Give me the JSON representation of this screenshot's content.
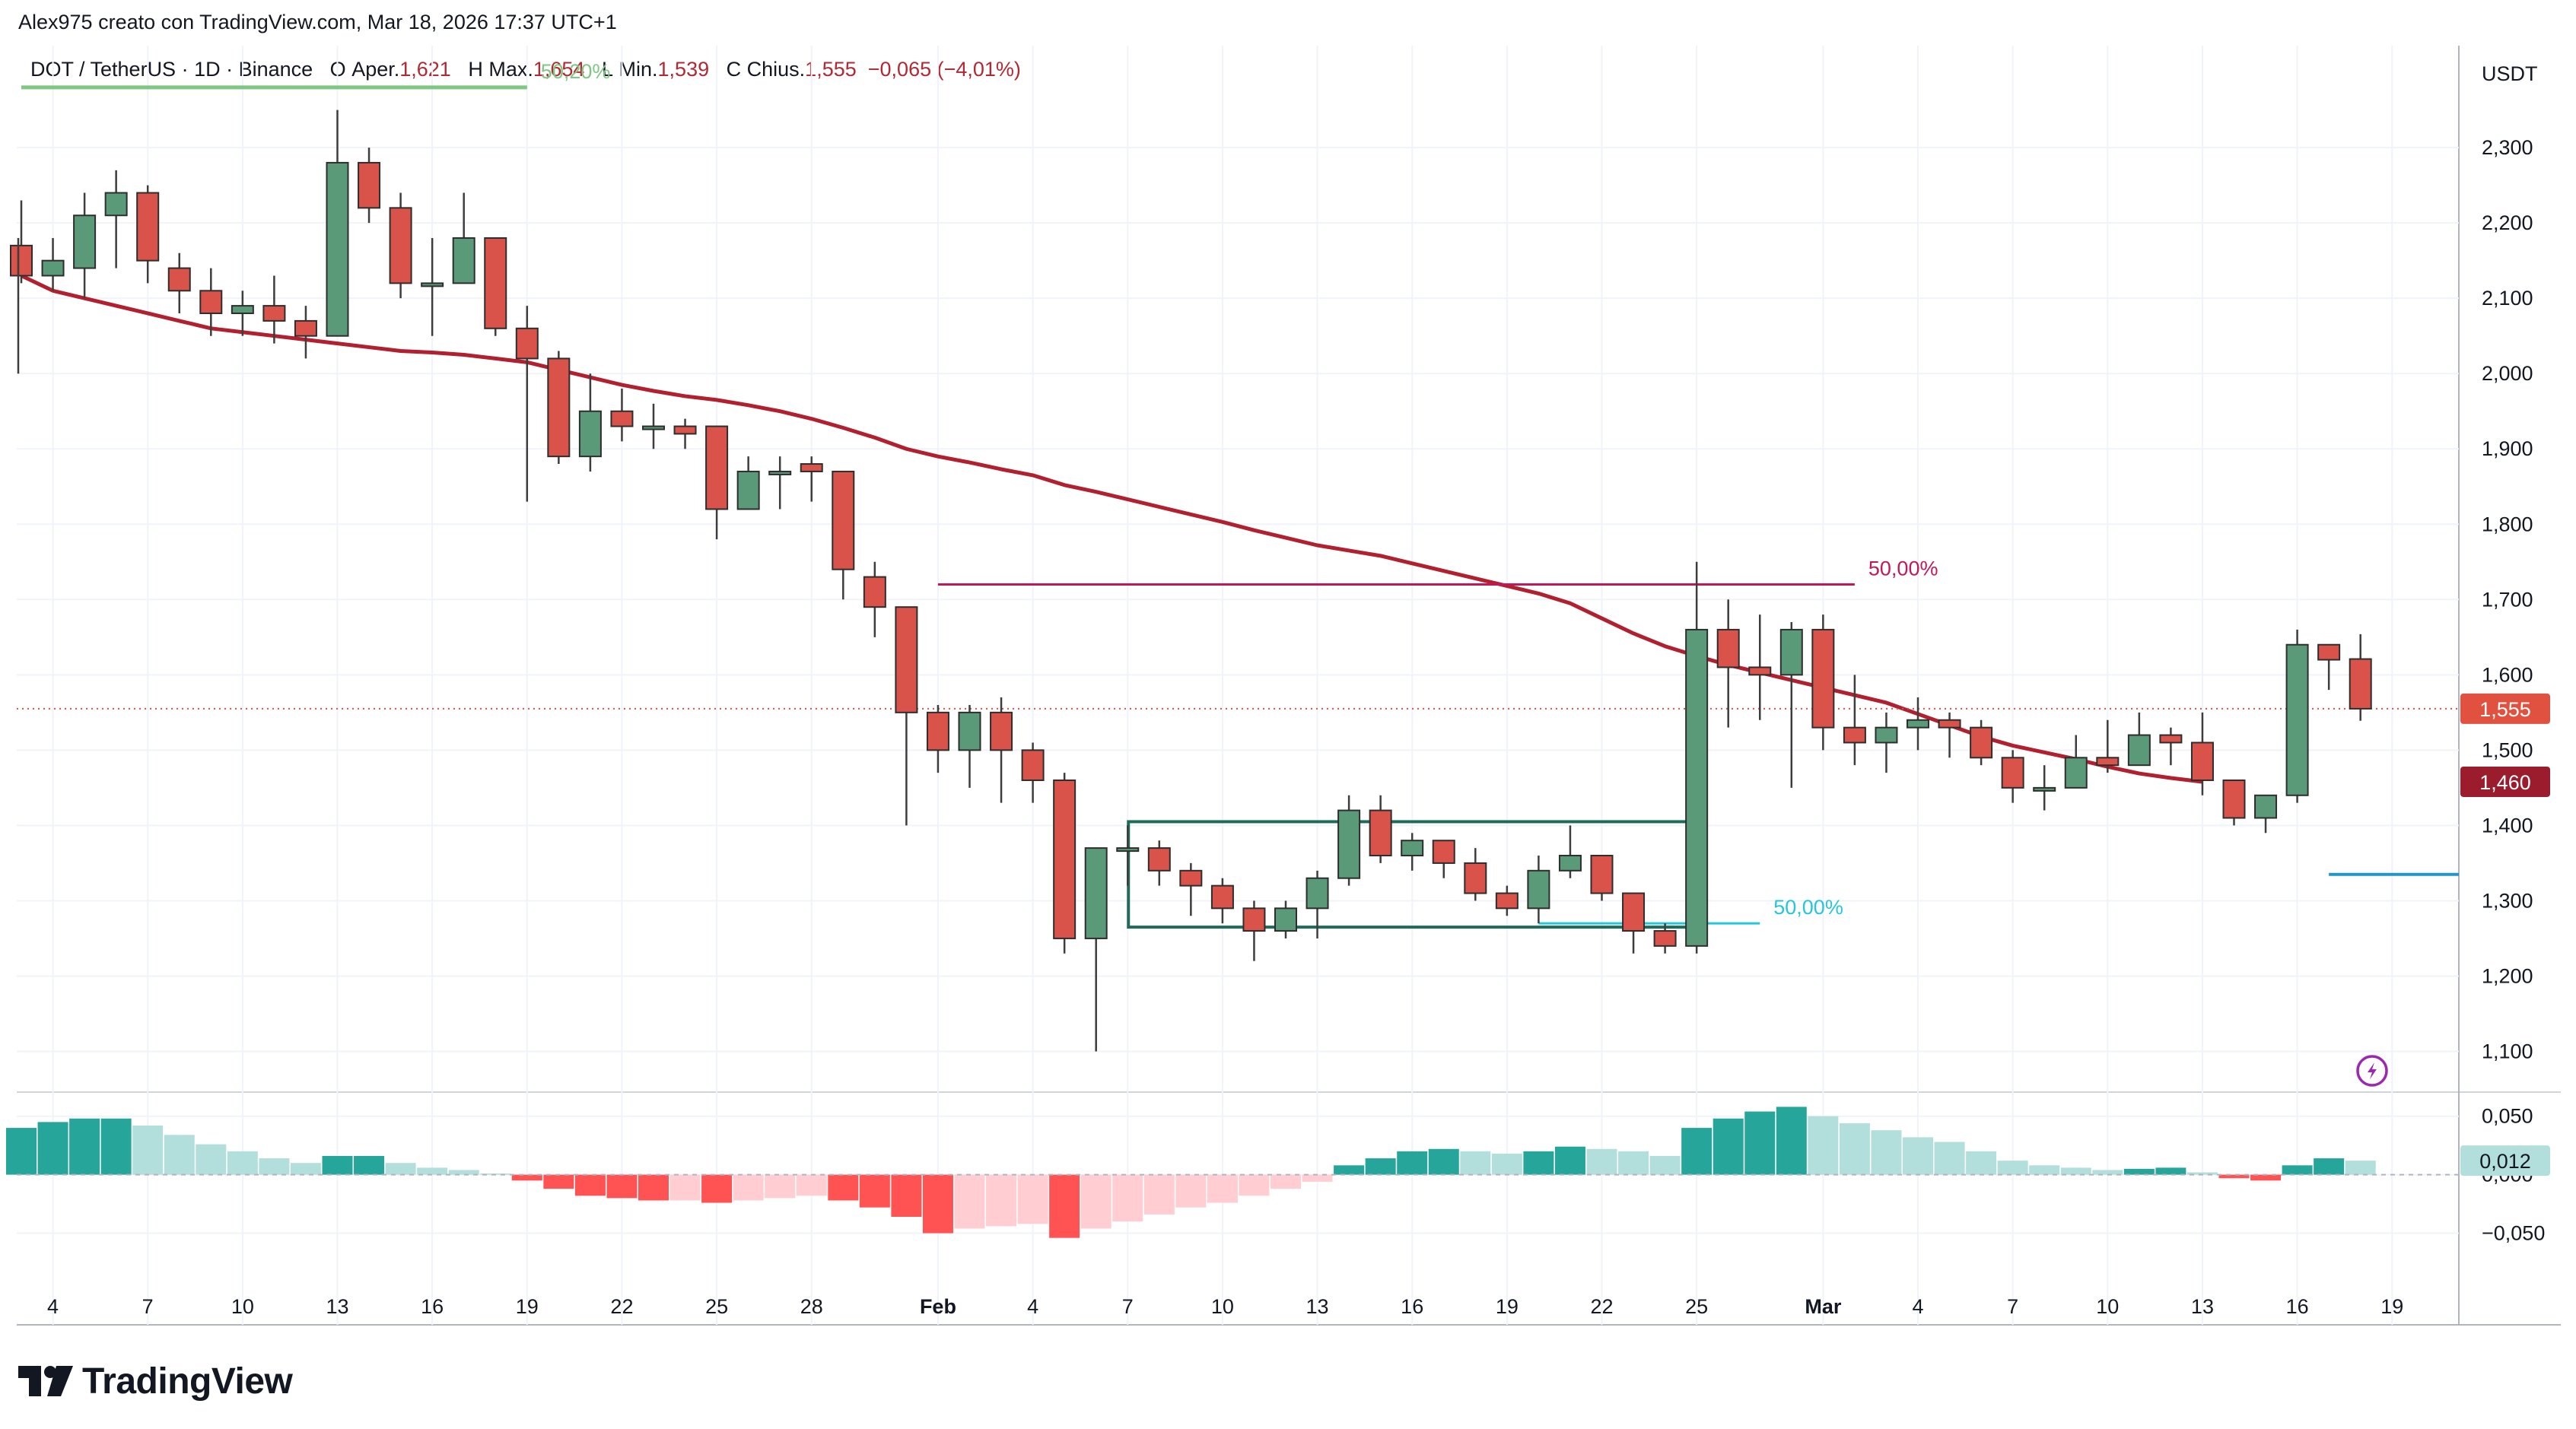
{
  "header": {
    "credit": "Alex975 creato con TradingView.com, Mar 18, 2026 17:37 UTC+1",
    "symbol_line": "DOT / TetherUS · 1D · Binance",
    "open_label": "O",
    "open_name": "Aper.",
    "open_value": "1,621",
    "high_label": "H",
    "high_name": "Max.",
    "high_value": "1,654",
    "low_label": "L",
    "low_name": "Min.",
    "low_value": "1,539",
    "close_label": "C",
    "close_name": "Chius.",
    "close_value": "1,555",
    "change_value": "−0,065 (−4,01%)"
  },
  "currency_label": "USDT",
  "logo_text": "TradingView",
  "colors": {
    "up": "#5b9a78",
    "down": "#d9534a",
    "ma": "#b2202f",
    "fib_top": "#c2185b",
    "fib_box": "#1e6b5a",
    "fib_mid": "#26c6da",
    "price_tag": "#e0523f",
    "ma_tag": "#9b1c2c",
    "hist_up_strong": "#26a69a",
    "hist_up_weak": "#b2dfdb",
    "hist_down_strong": "#ff5252",
    "hist_down_weak": "#ffcdd2",
    "blue_line": "#2196c9",
    "green_line": "#81c784"
  },
  "chart_data": {
    "type": "candlestick",
    "price_axis": {
      "ylim": [
        1.05,
        2.39
      ],
      "ticks": [
        "2,300",
        "2,200",
        "2,100",
        "2,000",
        "1,900",
        "1,800",
        "1,700",
        "1,600",
        "1,500",
        "1,400",
        "1,300",
        "1,200",
        "1,100"
      ],
      "tick_values": [
        2.3,
        2.2,
        2.1,
        2.0,
        1.9,
        1.8,
        1.7,
        1.6,
        1.5,
        1.4,
        1.3,
        1.2,
        1.1
      ]
    },
    "osc_axis": {
      "ylim": [
        -0.088,
        0.068
      ],
      "ticks": [
        "0,050",
        "0,000",
        "−0,050"
      ],
      "tick_values": [
        0.05,
        0.0,
        -0.05
      ]
    },
    "x_ticks": [
      {
        "i": 1,
        "label": "4"
      },
      {
        "i": 4,
        "label": "7"
      },
      {
        "i": 7,
        "label": "10"
      },
      {
        "i": 10,
        "label": "13"
      },
      {
        "i": 13,
        "label": "16"
      },
      {
        "i": 16,
        "label": "19"
      },
      {
        "i": 19,
        "label": "22"
      },
      {
        "i": 22,
        "label": "25"
      },
      {
        "i": 25,
        "label": "28"
      },
      {
        "i": 29,
        "label": "Feb"
      },
      {
        "i": 32,
        "label": "4"
      },
      {
        "i": 35,
        "label": "7"
      },
      {
        "i": 38,
        "label": "10"
      },
      {
        "i": 41,
        "label": "13"
      },
      {
        "i": 44,
        "label": "16"
      },
      {
        "i": 47,
        "label": "19"
      },
      {
        "i": 50,
        "label": "22"
      },
      {
        "i": 53,
        "label": "25"
      },
      {
        "i": 57,
        "label": "Mar"
      },
      {
        "i": 60,
        "label": "4"
      },
      {
        "i": 63,
        "label": "7"
      },
      {
        "i": 66,
        "label": "10"
      },
      {
        "i": 69,
        "label": "13"
      },
      {
        "i": 72,
        "label": "16"
      },
      {
        "i": 75,
        "label": "19"
      }
    ],
    "candles": [
      {
        "d": "Jan 3",
        "o": 2.17,
        "h": 2.23,
        "l": 2.12,
        "c": 2.13
      },
      {
        "d": "Jan 4",
        "o": 2.13,
        "h": 2.18,
        "l": 2.11,
        "c": 2.15
      },
      {
        "d": "Jan 5",
        "o": 2.14,
        "h": 2.24,
        "l": 2.1,
        "c": 2.21
      },
      {
        "d": "Jan 6",
        "o": 2.21,
        "h": 2.27,
        "l": 2.14,
        "c": 2.24
      },
      {
        "d": "Jan 7",
        "o": 2.24,
        "h": 2.25,
        "l": 2.12,
        "c": 2.15
      },
      {
        "d": "Jan 8",
        "o": 2.14,
        "h": 2.16,
        "l": 2.08,
        "c": 2.11
      },
      {
        "d": "Jan 9",
        "o": 2.11,
        "h": 2.14,
        "l": 2.05,
        "c": 2.08
      },
      {
        "d": "Jan 10",
        "o": 2.08,
        "h": 2.11,
        "l": 2.05,
        "c": 2.09
      },
      {
        "d": "Jan 11",
        "o": 2.09,
        "h": 2.13,
        "l": 2.04,
        "c": 2.07
      },
      {
        "d": "Jan 12",
        "o": 2.07,
        "h": 2.09,
        "l": 2.02,
        "c": 2.05
      },
      {
        "d": "Jan 13",
        "o": 2.05,
        "h": 2.35,
        "l": 2.05,
        "c": 2.28
      },
      {
        "d": "Jan 14",
        "o": 2.28,
        "h": 2.3,
        "l": 2.2,
        "c": 2.22
      },
      {
        "d": "Jan 15",
        "o": 2.22,
        "h": 2.24,
        "l": 2.1,
        "c": 2.12
      },
      {
        "d": "Jan 16",
        "o": 2.12,
        "h": 2.18,
        "l": 2.05,
        "c": 2.12
      },
      {
        "d": "Jan 17",
        "o": 2.12,
        "h": 2.24,
        "l": 2.12,
        "c": 2.18
      },
      {
        "d": "Jan 18",
        "o": 2.18,
        "h": 2.18,
        "l": 2.05,
        "c": 2.06
      },
      {
        "d": "Jan 19",
        "o": 2.06,
        "h": 2.09,
        "l": 1.83,
        "c": 2.02
      },
      {
        "d": "Jan 20",
        "o": 2.02,
        "h": 2.03,
        "l": 1.88,
        "c": 1.89
      },
      {
        "d": "Jan 21",
        "o": 1.89,
        "h": 2.0,
        "l": 1.87,
        "c": 1.95
      },
      {
        "d": "Jan 22",
        "o": 1.95,
        "h": 1.98,
        "l": 1.91,
        "c": 1.93
      },
      {
        "d": "Jan 23",
        "o": 1.93,
        "h": 1.96,
        "l": 1.9,
        "c": 1.93
      },
      {
        "d": "Jan 24",
        "o": 1.93,
        "h": 1.94,
        "l": 1.9,
        "c": 1.92
      },
      {
        "d": "Jan 25",
        "o": 1.93,
        "h": 1.93,
        "l": 1.78,
        "c": 1.82
      },
      {
        "d": "Jan 26",
        "o": 1.82,
        "h": 1.89,
        "l": 1.82,
        "c": 1.87
      },
      {
        "d": "Jan 27",
        "o": 1.87,
        "h": 1.89,
        "l": 1.82,
        "c": 1.87
      },
      {
        "d": "Jan 28",
        "o": 1.88,
        "h": 1.89,
        "l": 1.83,
        "c": 1.87
      },
      {
        "d": "Jan 29",
        "o": 1.87,
        "h": 1.87,
        "l": 1.7,
        "c": 1.74
      },
      {
        "d": "Jan 30",
        "o": 1.73,
        "h": 1.75,
        "l": 1.65,
        "c": 1.69
      },
      {
        "d": "Jan 31",
        "o": 1.69,
        "h": 1.69,
        "l": 1.4,
        "c": 1.55
      },
      {
        "d": "Feb 1",
        "o": 1.55,
        "h": 1.56,
        "l": 1.47,
        "c": 1.5
      },
      {
        "d": "Feb 2",
        "o": 1.5,
        "h": 1.56,
        "l": 1.45,
        "c": 1.55
      },
      {
        "d": "Feb 3",
        "o": 1.55,
        "h": 1.57,
        "l": 1.43,
        "c": 1.5
      },
      {
        "d": "Feb 4",
        "o": 1.5,
        "h": 1.51,
        "l": 1.43,
        "c": 1.46
      },
      {
        "d": "Feb 5",
        "o": 1.46,
        "h": 1.47,
        "l": 1.23,
        "c": 1.25
      },
      {
        "d": "Feb 6",
        "o": 1.25,
        "h": 1.37,
        "l": 1.1,
        "c": 1.37
      },
      {
        "d": "Feb 7",
        "o": 1.37,
        "h": 1.4,
        "l": 1.32,
        "c": 1.37
      },
      {
        "d": "Feb 8",
        "o": 1.37,
        "h": 1.38,
        "l": 1.32,
        "c": 1.34
      },
      {
        "d": "Feb 9",
        "o": 1.34,
        "h": 1.35,
        "l": 1.28,
        "c": 1.32
      },
      {
        "d": "Feb 10",
        "o": 1.32,
        "h": 1.33,
        "l": 1.27,
        "c": 1.29
      },
      {
        "d": "Feb 11",
        "o": 1.29,
        "h": 1.3,
        "l": 1.22,
        "c": 1.26
      },
      {
        "d": "Feb 12",
        "o": 1.26,
        "h": 1.3,
        "l": 1.25,
        "c": 1.29
      },
      {
        "d": "Feb 13",
        "o": 1.29,
        "h": 1.34,
        "l": 1.25,
        "c": 1.33
      },
      {
        "d": "Feb 14",
        "o": 1.33,
        "h": 1.44,
        "l": 1.32,
        "c": 1.42
      },
      {
        "d": "Feb 15",
        "o": 1.42,
        "h": 1.44,
        "l": 1.35,
        "c": 1.36
      },
      {
        "d": "Feb 16",
        "o": 1.36,
        "h": 1.39,
        "l": 1.34,
        "c": 1.38
      },
      {
        "d": "Feb 17",
        "o": 1.38,
        "h": 1.38,
        "l": 1.33,
        "c": 1.35
      },
      {
        "d": "Feb 18",
        "o": 1.35,
        "h": 1.37,
        "l": 1.3,
        "c": 1.31
      },
      {
        "d": "Feb 19",
        "o": 1.31,
        "h": 1.32,
        "l": 1.28,
        "c": 1.29
      },
      {
        "d": "Feb 20",
        "o": 1.29,
        "h": 1.36,
        "l": 1.27,
        "c": 1.34
      },
      {
        "d": "Feb 21",
        "o": 1.34,
        "h": 1.4,
        "l": 1.33,
        "c": 1.36
      },
      {
        "d": "Feb 22",
        "o": 1.36,
        "h": 1.36,
        "l": 1.3,
        "c": 1.31
      },
      {
        "d": "Feb 23",
        "o": 1.31,
        "h": 1.31,
        "l": 1.23,
        "c": 1.26
      },
      {
        "d": "Feb 24",
        "o": 1.26,
        "h": 1.27,
        "l": 1.23,
        "c": 1.24
      },
      {
        "d": "Feb 25",
        "o": 1.24,
        "h": 1.75,
        "l": 1.23,
        "c": 1.66
      },
      {
        "d": "Feb 26",
        "o": 1.66,
        "h": 1.7,
        "l": 1.53,
        "c": 1.61
      },
      {
        "d": "Feb 27",
        "o": 1.61,
        "h": 1.68,
        "l": 1.54,
        "c": 1.6
      },
      {
        "d": "Feb 28",
        "o": 1.6,
        "h": 1.67,
        "l": 1.45,
        "c": 1.66
      },
      {
        "d": "Mar 1",
        "o": 1.66,
        "h": 1.68,
        "l": 1.5,
        "c": 1.53
      },
      {
        "d": "Mar 2",
        "o": 1.53,
        "h": 1.6,
        "l": 1.48,
        "c": 1.51
      },
      {
        "d": "Mar 3",
        "o": 1.51,
        "h": 1.55,
        "l": 1.47,
        "c": 1.53
      },
      {
        "d": "Mar 4",
        "o": 1.53,
        "h": 1.57,
        "l": 1.5,
        "c": 1.54
      },
      {
        "d": "Mar 5",
        "o": 1.54,
        "h": 1.55,
        "l": 1.49,
        "c": 1.53
      },
      {
        "d": "Mar 6",
        "o": 1.53,
        "h": 1.54,
        "l": 1.48,
        "c": 1.49
      },
      {
        "d": "Mar 7",
        "o": 1.49,
        "h": 1.5,
        "l": 1.43,
        "c": 1.45
      },
      {
        "d": "Mar 8",
        "o": 1.45,
        "h": 1.48,
        "l": 1.42,
        "c": 1.45
      },
      {
        "d": "Mar 9",
        "o": 1.45,
        "h": 1.52,
        "l": 1.45,
        "c": 1.49
      },
      {
        "d": "Mar 10",
        "o": 1.49,
        "h": 1.54,
        "l": 1.47,
        "c": 1.48
      },
      {
        "d": "Mar 11",
        "o": 1.48,
        "h": 1.55,
        "l": 1.48,
        "c": 1.52
      },
      {
        "d": "Mar 12",
        "o": 1.52,
        "h": 1.53,
        "l": 1.48,
        "c": 1.51
      },
      {
        "d": "Mar 13",
        "o": 1.51,
        "h": 1.55,
        "l": 1.44,
        "c": 1.46
      },
      {
        "d": "Mar 14",
        "o": 1.46,
        "h": 1.46,
        "l": 1.4,
        "c": 1.41
      },
      {
        "d": "Mar 15",
        "o": 1.41,
        "h": 1.44,
        "l": 1.39,
        "c": 1.44
      },
      {
        "d": "Mar 16",
        "o": 1.44,
        "h": 1.66,
        "l": 1.43,
        "c": 1.64
      },
      {
        "d": "Mar 17",
        "o": 1.64,
        "h": 1.64,
        "l": 1.58,
        "c": 1.62
      },
      {
        "d": "Mar 18",
        "o": 1.621,
        "h": 1.654,
        "l": 1.539,
        "c": 1.555
      }
    ],
    "moving_average": {
      "values": [
        2.13,
        2.11,
        2.1,
        2.09,
        2.08,
        2.07,
        2.06,
        2.055,
        2.05,
        2.045,
        2.04,
        2.035,
        2.03,
        2.028,
        2.025,
        2.02,
        2.015,
        2.005,
        1.995,
        1.985,
        1.977,
        1.97,
        1.965,
        1.958,
        1.95,
        1.94,
        1.928,
        1.915,
        1.9,
        1.89,
        1.882,
        1.873,
        1.865,
        1.852,
        1.843,
        1.833,
        1.823,
        1.813,
        1.803,
        1.792,
        1.782,
        1.772,
        1.765,
        1.758,
        1.748,
        1.738,
        1.728,
        1.718,
        1.708,
        1.695,
        1.675,
        1.655,
        1.638,
        1.625,
        1.613,
        1.603,
        1.593,
        1.583,
        1.573,
        1.563,
        1.548,
        1.533,
        1.518,
        1.506,
        1.497,
        1.488,
        1.478,
        1.469,
        1.463,
        1.458
      ],
      "last_label": "1,460"
    },
    "current_price_label": "1,555",
    "current_price": 1.555,
    "fib_levels": [
      {
        "label": "50,00%",
        "value": 1.72,
        "from": 29,
        "to": 58,
        "color": "fib_top"
      },
      {
        "label": "50,00%",
        "value": 1.27,
        "from": 48,
        "to": 55,
        "color": "fib_mid"
      },
      {
        "label": "50,20%",
        "value": 2.38,
        "from": 0,
        "to": 16,
        "color": "green_line"
      }
    ],
    "range_box": {
      "from": 35,
      "to": 53,
      "top": 1.405,
      "bottom": 1.265
    },
    "blue_level": {
      "value": 1.335,
      "from": 73,
      "to": 77.5
    },
    "oscillator": [
      {
        "v": 0.04,
        "s": "us"
      },
      {
        "v": 0.045,
        "s": "us"
      },
      {
        "v": 0.048,
        "s": "us"
      },
      {
        "v": 0.048,
        "s": "us"
      },
      {
        "v": 0.042,
        "s": "uw"
      },
      {
        "v": 0.034,
        "s": "uw"
      },
      {
        "v": 0.026,
        "s": "uw"
      },
      {
        "v": 0.02,
        "s": "uw"
      },
      {
        "v": 0.014,
        "s": "uw"
      },
      {
        "v": 0.01,
        "s": "uw"
      },
      {
        "v": 0.016,
        "s": "us"
      },
      {
        "v": 0.016,
        "s": "us"
      },
      {
        "v": 0.01,
        "s": "uw"
      },
      {
        "v": 0.006,
        "s": "uw"
      },
      {
        "v": 0.004,
        "s": "uw"
      },
      {
        "v": 0.001,
        "s": "uw"
      },
      {
        "v": -0.005,
        "s": "ds"
      },
      {
        "v": -0.012,
        "s": "ds"
      },
      {
        "v": -0.018,
        "s": "ds"
      },
      {
        "v": -0.02,
        "s": "ds"
      },
      {
        "v": -0.022,
        "s": "ds"
      },
      {
        "v": -0.022,
        "s": "dw"
      },
      {
        "v": -0.024,
        "s": "ds"
      },
      {
        "v": -0.022,
        "s": "dw"
      },
      {
        "v": -0.02,
        "s": "dw"
      },
      {
        "v": -0.018,
        "s": "dw"
      },
      {
        "v": -0.022,
        "s": "ds"
      },
      {
        "v": -0.028,
        "s": "ds"
      },
      {
        "v": -0.036,
        "s": "ds"
      },
      {
        "v": -0.05,
        "s": "ds"
      },
      {
        "v": -0.046,
        "s": "dw"
      },
      {
        "v": -0.044,
        "s": "dw"
      },
      {
        "v": -0.042,
        "s": "dw"
      },
      {
        "v": -0.054,
        "s": "ds"
      },
      {
        "v": -0.046,
        "s": "dw"
      },
      {
        "v": -0.04,
        "s": "dw"
      },
      {
        "v": -0.034,
        "s": "dw"
      },
      {
        "v": -0.028,
        "s": "dw"
      },
      {
        "v": -0.024,
        "s": "dw"
      },
      {
        "v": -0.018,
        "s": "dw"
      },
      {
        "v": -0.012,
        "s": "dw"
      },
      {
        "v": -0.006,
        "s": "dw"
      },
      {
        "v": 0.008,
        "s": "us"
      },
      {
        "v": 0.014,
        "s": "us"
      },
      {
        "v": 0.02,
        "s": "us"
      },
      {
        "v": 0.022,
        "s": "us"
      },
      {
        "v": 0.02,
        "s": "uw"
      },
      {
        "v": 0.018,
        "s": "uw"
      },
      {
        "v": 0.02,
        "s": "us"
      },
      {
        "v": 0.024,
        "s": "us"
      },
      {
        "v": 0.022,
        "s": "uw"
      },
      {
        "v": 0.02,
        "s": "uw"
      },
      {
        "v": 0.016,
        "s": "uw"
      },
      {
        "v": 0.04,
        "s": "us"
      },
      {
        "v": 0.048,
        "s": "us"
      },
      {
        "v": 0.054,
        "s": "us"
      },
      {
        "v": 0.058,
        "s": "us"
      },
      {
        "v": 0.05,
        "s": "uw"
      },
      {
        "v": 0.044,
        "s": "uw"
      },
      {
        "v": 0.038,
        "s": "uw"
      },
      {
        "v": 0.032,
        "s": "uw"
      },
      {
        "v": 0.028,
        "s": "uw"
      },
      {
        "v": 0.02,
        "s": "uw"
      },
      {
        "v": 0.012,
        "s": "uw"
      },
      {
        "v": 0.008,
        "s": "uw"
      },
      {
        "v": 0.006,
        "s": "uw"
      },
      {
        "v": 0.004,
        "s": "uw"
      },
      {
        "v": 0.005,
        "s": "us"
      },
      {
        "v": 0.006,
        "s": "us"
      },
      {
        "v": 0.002,
        "s": "uw"
      },
      {
        "v": -0.003,
        "s": "ds"
      },
      {
        "v": -0.005,
        "s": "ds"
      },
      {
        "v": 0.008,
        "s": "us"
      },
      {
        "v": 0.014,
        "s": "us"
      },
      {
        "v": 0.012,
        "s": "uw"
      }
    ],
    "oscillator_label": "0,012",
    "oscillator_zero_label": "0,000"
  }
}
